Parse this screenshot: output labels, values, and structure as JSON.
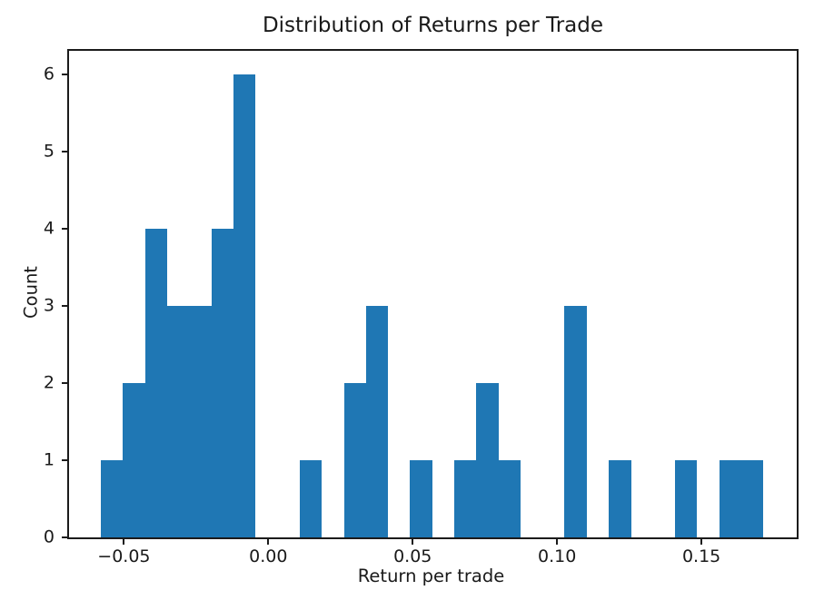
{
  "chart_data": {
    "type": "bar",
    "subtype": "histogram",
    "title": "Distribution of Returns per Trade",
    "xlabel": "Return per trade",
    "ylabel": "Count",
    "bar_color": "#1f77b4",
    "axis_color": "#1b1b1b",
    "background": "#ffffff",
    "grid": false,
    "xlim": [
      -0.069,
      0.183
    ],
    "ylim": [
      0,
      6.3
    ],
    "x_ticks": {
      "values": [
        -0.05,
        0.0,
        0.05,
        0.1,
        0.15
      ],
      "labels": [
        "−0.05",
        "0.00",
        "0.05",
        "0.10",
        "0.15"
      ]
    },
    "y_ticks": {
      "values": [
        0,
        1,
        2,
        3,
        4,
        5,
        6
      ],
      "labels": [
        "0",
        "1",
        "2",
        "3",
        "4",
        "5",
        "6"
      ]
    },
    "bins": {
      "edges": [
        -0.0579,
        -0.0503,
        -0.0426,
        -0.035,
        -0.0273,
        -0.0197,
        -0.012,
        -0.0044,
        0.0033,
        0.0109,
        0.0186,
        0.0262,
        0.0338,
        0.0415,
        0.0491,
        0.0568,
        0.0644,
        0.0721,
        0.0797,
        0.0874,
        0.095,
        0.1026,
        0.1103,
        0.1179,
        0.1256,
        0.1332,
        0.1409,
        0.1485,
        0.1562,
        0.1638,
        0.1715
      ],
      "counts": [
        1,
        2,
        4,
        3,
        3,
        4,
        6,
        0,
        0,
        1,
        0,
        2,
        3,
        0,
        1,
        0,
        1,
        2,
        1,
        0,
        0,
        3,
        0,
        1,
        0,
        0,
        1,
        0,
        1,
        1
      ]
    }
  }
}
